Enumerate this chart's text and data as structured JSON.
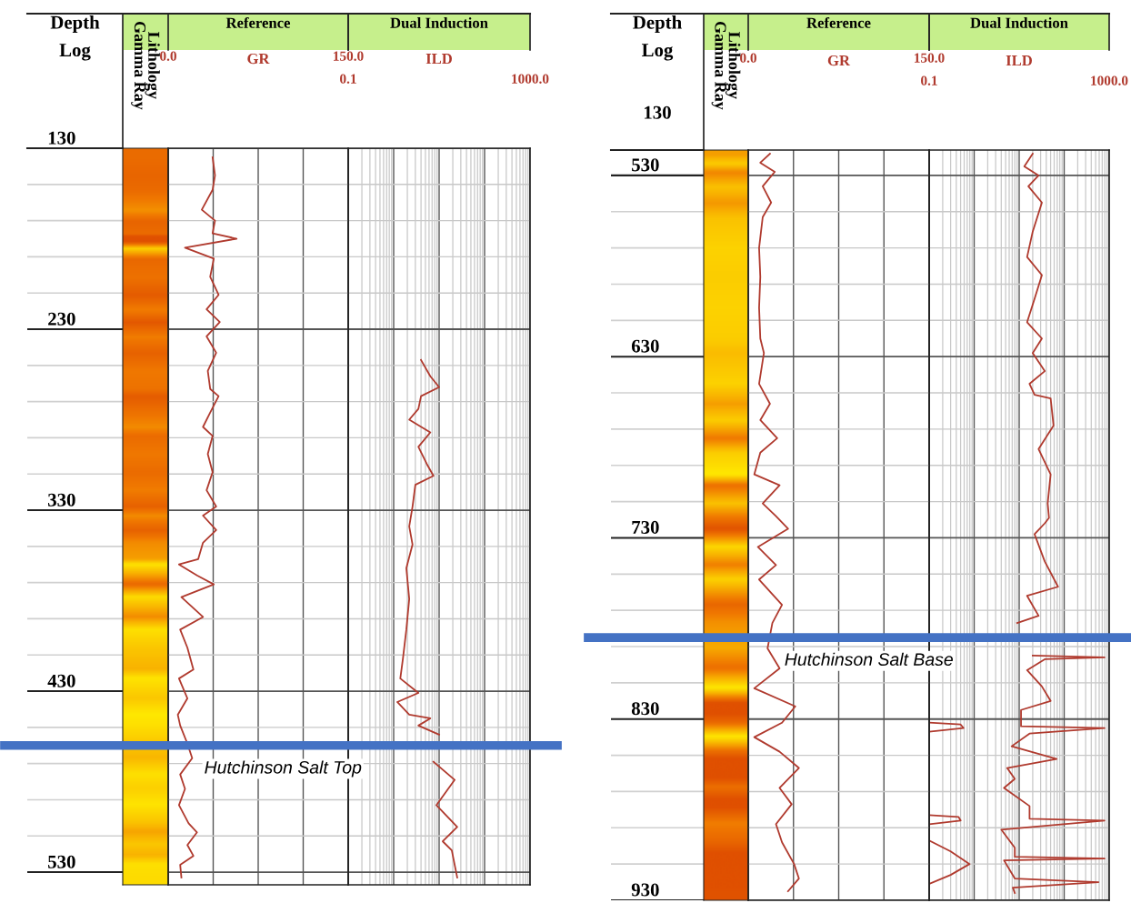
{
  "chart_data": [
    {
      "type": "line",
      "orientation": "horizontal",
      "title": "Reference",
      "xlabel": "GR",
      "ylabel": "Depth\nLog",
      "annotations": [
        "Lithology\nGamma Ray"
      ],
      "grid": true,
      "xlim": [
        0,
        150
      ],
      "xticks": [
        {
          "value": 0,
          "label": "0.0"
        },
        {
          "value": 37.5,
          "label": null
        },
        {
          "value": 75,
          "label": null
        },
        {
          "value": 112.5,
          "label": null
        },
        {
          "value": 150,
          "label": "150.0"
        }
      ],
      "ylim": [
        537,
        130
      ],
      "yticks": [
        130,
        {
          "value": 150,
          "label": null
        },
        {
          "value": 170,
          "label": null
        },
        {
          "value": 190,
          "label": null
        },
        {
          "value": 210,
          "label": null
        },
        230,
        {
          "value": 250,
          "label": null
        },
        {
          "value": 270,
          "label": null
        },
        {
          "value": 290,
          "label": null
        },
        {
          "value": 310,
          "label": null
        },
        330,
        {
          "value": 350,
          "label": null
        },
        {
          "value": 370,
          "label": null
        },
        {
          "value": 390,
          "label": null
        },
        {
          "value": 410,
          "label": null
        },
        430,
        {
          "value": 450,
          "label": null
        },
        {
          "value": 470,
          "label": null
        },
        {
          "value": 490,
          "label": null
        },
        {
          "value": 510,
          "label": null
        },
        530
      ],
      "ref_lines": [
        {
          "axis": "y",
          "value": 460,
          "label": "Hutchinson Salt Top",
          "color": "#4472c4"
        }
      ],
      "series": [
        {
          "color": "#b03a2e",
          "x": [
            135,
            145,
            153,
            164,
            170,
            177,
            180,
            185,
            191,
            201,
            211,
            219,
            226,
            234,
            243,
            253,
            263,
            267,
            276,
            284,
            289,
            299,
            309,
            319,
            328,
            333,
            341,
            348,
            357,
            360,
            366,
            371,
            378,
            389,
            396,
            406,
            418,
            423,
            434,
            443,
            449,
            459,
            467,
            476,
            484,
            493,
            503,
            508,
            515,
            521,
            526,
            533
          ],
          "values": [
            37,
            39,
            37,
            28,
            39,
            37,
            57,
            14,
            38,
            35,
            42,
            32,
            43,
            32,
            40,
            33,
            35,
            42,
            35,
            29,
            37,
            33,
            37,
            32,
            40,
            29,
            40,
            29,
            25,
            9,
            24,
            38,
            11,
            29,
            10,
            16,
            21,
            9,
            16,
            8,
            10,
            16,
            20,
            10,
            14,
            9,
            17,
            24,
            16,
            21,
            10,
            11
          ]
        }
      ]
    },
    {
      "type": "line",
      "orientation": "horizontal",
      "title": "Dual Induction",
      "xlabel": "ILD",
      "log": "x",
      "grid": true,
      "tick_labels": "x",
      "xlim": [
        0.1,
        1000
      ],
      "xticks": [
        {
          "value": 0.1,
          "label": "0.1"
        },
        {
          "value": 1,
          "label": null
        },
        {
          "value": 10,
          "label": null
        },
        {
          "value": 100,
          "label": null
        },
        {
          "value": 1000,
          "label": "1000.0"
        }
      ],
      "ylim": [
        537,
        130
      ],
      "yticks": [
        130,
        {
          "value": 150,
          "label": null
        },
        {
          "value": 170,
          "label": null
        },
        {
          "value": 190,
          "label": null
        },
        {
          "value": 210,
          "label": null
        },
        230,
        {
          "value": 250,
          "label": null
        },
        {
          "value": 270,
          "label": null
        },
        {
          "value": 290,
          "label": null
        },
        {
          "value": 310,
          "label": null
        },
        330,
        {
          "value": 350,
          "label": null
        },
        {
          "value": 370,
          "label": null
        },
        {
          "value": 390,
          "label": null
        },
        {
          "value": 410,
          "label": null
        },
        430,
        {
          "value": 450,
          "label": null
        },
        {
          "value": 470,
          "label": null
        },
        {
          "value": 490,
          "label": null
        },
        {
          "value": 510,
          "label": null
        },
        530
      ],
      "series": [
        {
          "color": "#b03a2e",
          "x": [
            247,
            256,
            262,
            267,
            274,
            280,
            287,
            295,
            305,
            311,
            316,
            328,
            339,
            349,
            362,
            379,
            396,
            412,
            423,
            431,
            436,
            443,
            445,
            449,
            454,
            459,
            469,
            479,
            493,
            505,
            513,
            518,
            526,
            533
          ],
          "values": [
            4.0,
            6.4,
            10,
            4.0,
            3.5,
            2.2,
            6.4,
            3.5,
            5.5,
            7.5,
            3.0,
            2.6,
            2.2,
            2.6,
            1.9,
            2.2,
            1.9,
            1.6,
            1.4,
            3.5,
            1.2,
            2.2,
            6.4,
            3.5,
            10,
            null,
            7.5,
            22,
            8.7,
            25,
            12,
            19,
            22,
            25
          ]
        }
      ]
    },
    {
      "type": "line",
      "orientation": "horizontal",
      "title": "Reference",
      "xlabel": "GR",
      "ylabel": "Depth\nLog",
      "annotations": [
        "Lithology\nGamma Ray",
        "130"
      ],
      "grid": true,
      "xlim": [
        0,
        150
      ],
      "xticks": [
        {
          "value": 0,
          "label": "0.0"
        },
        {
          "value": 37.5,
          "label": null
        },
        {
          "value": 75,
          "label": null
        },
        {
          "value": 112.5,
          "label": null
        },
        {
          "value": 150,
          "label": "150.0"
        }
      ],
      "ylim": [
        936,
        522
      ],
      "yticks": [
        530,
        630,
        730,
        830,
        930,
        {
          "value": 536,
          "label": null
        },
        {
          "value": 556,
          "label": null
        },
        {
          "value": 576,
          "label": null
        },
        {
          "value": 596,
          "label": null
        },
        {
          "value": 616,
          "label": null
        },
        {
          "value": 636,
          "label": null
        },
        {
          "value": 656,
          "label": null
        },
        {
          "value": 676,
          "label": null
        },
        {
          "value": 696,
          "label": null
        },
        {
          "value": 716,
          "label": null
        },
        {
          "value": 736,
          "label": null
        },
        {
          "value": 756,
          "label": null
        },
        {
          "value": 776,
          "label": null
        },
        {
          "value": 796,
          "label": null
        },
        {
          "value": 816,
          "label": null
        },
        {
          "value": 836,
          "label": null
        },
        {
          "value": 856,
          "label": null
        },
        {
          "value": 876,
          "label": null
        },
        {
          "value": 896,
          "label": null
        },
        {
          "value": 916,
          "label": null
        },
        {
          "value": 936,
          "label": null
        }
      ],
      "ref_lines": [
        {
          "axis": "y",
          "value": 791,
          "label": "Hutchinson Salt Base",
          "color": "#4472c4"
        }
      ],
      "series": [
        {
          "color": "#b03a2e",
          "x": [
            524,
            529,
            534,
            542,
            551,
            559,
            576,
            592,
            609,
            626,
            634,
            651,
            662,
            671,
            681,
            689,
            701,
            707,
            717,
            724,
            731,
            741,
            751,
            759,
            773,
            783,
            797,
            808,
            819,
            829,
            838,
            846,
            854,
            863,
            874,
            883,
            894,
            904,
            916,
            924,
            931
          ],
          "values": [
            18,
            10,
            22,
            12,
            19,
            12,
            9,
            10,
            9,
            10,
            13,
            9,
            18,
            10,
            24,
            10,
            5,
            26,
            12,
            23,
            33,
            8,
            23,
            9,
            28,
            20,
            16,
            26,
            5,
            39,
            28,
            5,
            26,
            42,
            26,
            36,
            23,
            28,
            38,
            42,
            33
          ]
        }
      ]
    },
    {
      "type": "line",
      "orientation": "horizontal",
      "title": "Dual Induction",
      "xlabel": "ILD",
      "log": "x",
      "grid": true,
      "tick_labels": "x",
      "xlim": [
        0.1,
        1000
      ],
      "xticks": [
        {
          "value": 0.1,
          "label": "0.1"
        },
        {
          "value": 1,
          "label": null
        },
        {
          "value": 10,
          "label": null
        },
        {
          "value": 100,
          "label": null
        },
        {
          "value": 1000,
          "label": "1000.0"
        }
      ],
      "ylim": [
        936,
        522
      ],
      "yticks": [
        530,
        630,
        730,
        830,
        930,
        {
          "value": 536,
          "label": null
        },
        {
          "value": 556,
          "label": null
        },
        {
          "value": 576,
          "label": null
        },
        {
          "value": 596,
          "label": null
        },
        {
          "value": 616,
          "label": null
        },
        {
          "value": 636,
          "label": null
        },
        {
          "value": 656,
          "label": null
        },
        {
          "value": 676,
          "label": null
        },
        {
          "value": 696,
          "label": null
        },
        {
          "value": 716,
          "label": null
        },
        {
          "value": 736,
          "label": null
        },
        {
          "value": 756,
          "label": null
        },
        {
          "value": 776,
          "label": null
        },
        {
          "value": 796,
          "label": null
        },
        {
          "value": 816,
          "label": null
        },
        {
          "value": 836,
          "label": null
        },
        {
          "value": 856,
          "label": null
        },
        {
          "value": 876,
          "label": null
        },
        {
          "value": 896,
          "label": null
        },
        {
          "value": 916,
          "label": null
        },
        {
          "value": 936,
          "label": null
        }
      ],
      "series": [
        {
          "color": "#b03a2e",
          "x": [
            524,
            531,
            536,
            542,
            551,
            567,
            581,
            591,
            604,
            617,
            626,
            634,
            644,
            651,
            657,
            659,
            674,
            687,
            701,
            717,
            725,
            728,
            734,
            749,
            763,
            768,
            779,
            783,
            791,
            801,
            802,
            803,
            809,
            818,
            826,
            831,
            840,
            841,
            844,
            851,
            858,
            863,
            869,
            874,
            884,
            891,
            892,
            897,
            907,
            912,
            913,
            914,
            924,
            926,
            929,
            932
          ],
          "values": [
            20,
            13,
            27,
            16,
            32,
            20,
            15,
            32,
            22,
            15,
            32,
            20,
            37,
            17,
            22,
            50,
            58,
            27,
            50,
            43,
            46,
            37,
            22,
            37,
            73,
            15,
            27,
            9,
            null,
            20,
            790,
            37,
            15,
            32,
            50,
            11,
            11,
            790,
            17,
            6.8,
            68,
            5.4,
            8,
            4.6,
            17,
            17,
            790,
            4,
            8,
            8,
            790,
            4.6,
            8,
            580,
            7.2,
            8
          ]
        },
        {
          "color": "#b03a2e",
          "x": [
            838,
            839,
            841,
            843,
            866,
            889,
            890,
            892,
            894,
            898,
            903,
            909,
            916,
            922,
            927
          ],
          "values": [
            0.1,
            0.5,
            0.58,
            0.1,
            null,
            0.1,
            0.45,
            0.5,
            0.1,
            null,
            0.1,
            0.3,
            0.79,
            0.3,
            0.1
          ]
        }
      ]
    }
  ]
}
